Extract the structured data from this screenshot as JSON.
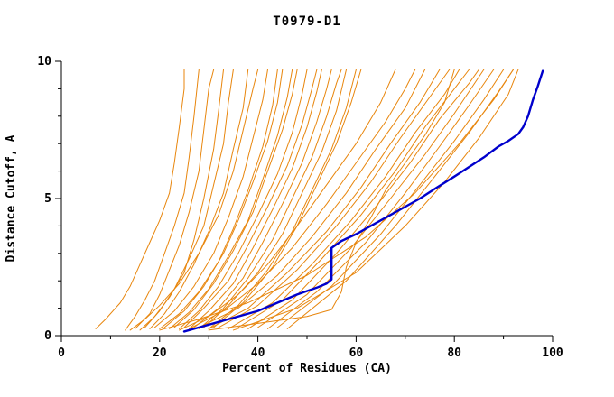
{
  "chart_data": {
    "type": "line",
    "title": "T0979-D1",
    "xlabel": "Percent of Residues (CA)",
    "ylabel": "Distance Cutoff, A",
    "xlim": [
      0,
      100
    ],
    "ylim": [
      0,
      10
    ],
    "x_ticks": [
      0,
      20,
      40,
      60,
      80,
      100
    ],
    "y_ticks": [
      0,
      5,
      10
    ],
    "x_minor_tick_step": 10,
    "y_minor_tick_step": 1,
    "grid": false,
    "legend": "none",
    "colors": {
      "orange": "#E8860D",
      "blue": "#0000CC",
      "axis": "#000000"
    },
    "blue_series": [
      [
        25,
        0.15
      ],
      [
        28,
        0.3
      ],
      [
        32,
        0.5
      ],
      [
        36,
        0.7
      ],
      [
        40,
        0.9
      ],
      [
        44,
        1.2
      ],
      [
        48,
        1.5
      ],
      [
        52,
        1.75
      ],
      [
        54,
        1.9
      ],
      [
        55,
        2.05
      ],
      [
        55,
        3.2
      ],
      [
        57,
        3.45
      ],
      [
        60,
        3.7
      ],
      [
        64,
        4.1
      ],
      [
        68,
        4.5
      ],
      [
        70,
        4.7
      ],
      [
        73,
        5.0
      ],
      [
        76,
        5.35
      ],
      [
        80,
        5.8
      ],
      [
        83,
        6.15
      ],
      [
        86,
        6.5
      ],
      [
        89,
        6.9
      ],
      [
        91,
        7.1
      ],
      [
        93,
        7.35
      ],
      [
        94,
        7.6
      ],
      [
        95,
        8.0
      ],
      [
        96,
        8.6
      ],
      [
        97,
        9.1
      ],
      [
        98,
        9.65
      ]
    ],
    "orange_series": [
      [
        [
          7,
          0.25
        ],
        [
          9,
          0.6
        ],
        [
          12,
          1.2
        ],
        [
          14,
          1.8
        ],
        [
          16,
          2.6
        ],
        [
          18,
          3.4
        ],
        [
          20,
          4.2
        ],
        [
          22,
          5.2
        ],
        [
          23,
          6.3
        ],
        [
          24,
          7.6
        ],
        [
          25,
          9.0
        ],
        [
          25,
          9.7
        ]
      ],
      [
        [
          13,
          0.2
        ],
        [
          15,
          0.7
        ],
        [
          17,
          1.3
        ],
        [
          19,
          2.0
        ],
        [
          21,
          3.0
        ],
        [
          23,
          4.0
        ],
        [
          25,
          5.2
        ],
        [
          26,
          6.5
        ],
        [
          27,
          8.0
        ],
        [
          28,
          9.7
        ]
      ],
      [
        [
          15,
          0.25
        ],
        [
          18,
          0.8
        ],
        [
          20,
          1.5
        ],
        [
          22,
          2.4
        ],
        [
          24,
          3.3
        ],
        [
          26,
          4.5
        ],
        [
          28,
          6.0
        ],
        [
          29,
          7.5
        ],
        [
          30,
          9.0
        ],
        [
          31,
          9.7
        ]
      ],
      [
        [
          16,
          0.2
        ],
        [
          19,
          0.7
        ],
        [
          22,
          1.4
        ],
        [
          25,
          2.3
        ],
        [
          27,
          3.5
        ],
        [
          29,
          5.0
        ],
        [
          31,
          6.8
        ],
        [
          32,
          8.2
        ],
        [
          33,
          9.7
        ]
      ],
      [
        [
          17,
          0.3
        ],
        [
          20,
          0.9
        ],
        [
          23,
          1.7
        ],
        [
          26,
          2.8
        ],
        [
          29,
          4.0
        ],
        [
          31,
          5.5
        ],
        [
          33,
          7.0
        ],
        [
          34,
          8.5
        ],
        [
          35,
          9.7
        ]
      ],
      [
        [
          18,
          0.25
        ],
        [
          21,
          0.8
        ],
        [
          24,
          1.6
        ],
        [
          27,
          2.6
        ],
        [
          30,
          3.8
        ],
        [
          33,
          5.2
        ],
        [
          35,
          6.8
        ],
        [
          37,
          8.3
        ],
        [
          38,
          9.7
        ]
      ],
      [
        [
          14,
          0.2
        ],
        [
          17,
          0.6
        ],
        [
          20,
          1.1
        ],
        [
          24,
          1.9
        ],
        [
          28,
          3.0
        ],
        [
          32,
          4.4
        ],
        [
          35,
          6.0
        ],
        [
          37,
          7.5
        ],
        [
          39,
          9.0
        ],
        [
          40,
          9.7
        ]
      ],
      [
        [
          19,
          0.3
        ],
        [
          23,
          0.9
        ],
        [
          27,
          1.8
        ],
        [
          31,
          3.0
        ],
        [
          34,
          4.3
        ],
        [
          37,
          5.8
        ],
        [
          39,
          7.2
        ],
        [
          41,
          8.6
        ],
        [
          42,
          9.7
        ]
      ],
      [
        [
          20,
          0.25
        ],
        [
          24,
          0.8
        ],
        [
          28,
          1.6
        ],
        [
          32,
          2.7
        ],
        [
          35,
          3.9
        ],
        [
          38,
          5.3
        ],
        [
          41,
          6.9
        ],
        [
          43,
          8.4
        ],
        [
          44,
          9.7
        ]
      ],
      [
        [
          21,
          0.3
        ],
        [
          25,
          0.9
        ],
        [
          29,
          1.8
        ],
        [
          33,
          3.0
        ],
        [
          36,
          4.2
        ],
        [
          39,
          5.6
        ],
        [
          42,
          7.1
        ],
        [
          44,
          8.5
        ],
        [
          45,
          9.7
        ]
      ],
      [
        [
          22,
          0.25
        ],
        [
          26,
          0.85
        ],
        [
          30,
          1.7
        ],
        [
          34,
          2.9
        ],
        [
          38,
          4.2
        ],
        [
          41,
          5.7
        ],
        [
          44,
          7.3
        ],
        [
          46,
          8.7
        ],
        [
          47,
          9.7
        ]
      ],
      [
        [
          23,
          0.3
        ],
        [
          27,
          0.95
        ],
        [
          31,
          1.9
        ],
        [
          35,
          3.1
        ],
        [
          39,
          4.5
        ],
        [
          42,
          6.0
        ],
        [
          45,
          7.5
        ],
        [
          47,
          8.8
        ],
        [
          48,
          9.7
        ]
      ],
      [
        [
          24,
          0.25
        ],
        [
          28,
          0.9
        ],
        [
          32,
          1.8
        ],
        [
          36,
          3.0
        ],
        [
          40,
          4.4
        ],
        [
          44,
          5.9
        ],
        [
          47,
          7.4
        ],
        [
          49,
          8.8
        ],
        [
          50,
          9.7
        ]
      ],
      [
        [
          25,
          0.3
        ],
        [
          29,
          1.0
        ],
        [
          34,
          2.0
        ],
        [
          38,
          3.3
        ],
        [
          42,
          4.7
        ],
        [
          46,
          6.2
        ],
        [
          49,
          7.7
        ],
        [
          51,
          9.0
        ],
        [
          52,
          9.7
        ]
      ],
      [
        [
          26,
          0.25
        ],
        [
          30,
          0.9
        ],
        [
          35,
          1.9
        ],
        [
          39,
          3.2
        ],
        [
          43,
          4.6
        ],
        [
          47,
          6.1
        ],
        [
          50,
          7.6
        ],
        [
          52,
          8.9
        ],
        [
          53,
          9.7
        ]
      ],
      [
        [
          27,
          0.3
        ],
        [
          32,
          1.0
        ],
        [
          37,
          2.1
        ],
        [
          41,
          3.4
        ],
        [
          45,
          4.8
        ],
        [
          49,
          6.3
        ],
        [
          52,
          7.8
        ],
        [
          54,
          9.0
        ],
        [
          55,
          9.7
        ]
      ],
      [
        [
          28,
          0.25
        ],
        [
          33,
          1.0
        ],
        [
          38,
          2.1
        ],
        [
          43,
          3.5
        ],
        [
          47,
          5.0
        ],
        [
          51,
          6.5
        ],
        [
          54,
          8.0
        ],
        [
          56,
          9.2
        ],
        [
          57,
          9.7
        ]
      ],
      [
        [
          29,
          0.3
        ],
        [
          34,
          1.1
        ],
        [
          40,
          2.3
        ],
        [
          45,
          3.7
        ],
        [
          49,
          5.2
        ],
        [
          53,
          6.7
        ],
        [
          56,
          8.2
        ],
        [
          58,
          9.7
        ]
      ],
      [
        [
          30,
          0.25
        ],
        [
          36,
          1.1
        ],
        [
          42,
          2.4
        ],
        [
          47,
          3.8
        ],
        [
          51,
          5.3
        ],
        [
          55,
          6.8
        ],
        [
          58,
          8.3
        ],
        [
          60,
          9.7
        ]
      ],
      [
        [
          31,
          0.3
        ],
        [
          37,
          1.2
        ],
        [
          43,
          2.5
        ],
        [
          48,
          4.0
        ],
        [
          52,
          5.5
        ],
        [
          56,
          7.0
        ],
        [
          59,
          8.5
        ],
        [
          61,
          9.7
        ]
      ],
      [
        [
          24,
          0.2
        ],
        [
          30,
          0.7
        ],
        [
          36,
          1.5
        ],
        [
          42,
          2.6
        ],
        [
          48,
          4.0
        ],
        [
          54,
          5.5
        ],
        [
          60,
          7.0
        ],
        [
          65,
          8.5
        ],
        [
          68,
          9.7
        ]
      ],
      [
        [
          26,
          0.25
        ],
        [
          33,
          0.9
        ],
        [
          40,
          1.9
        ],
        [
          47,
          3.2
        ],
        [
          54,
          4.8
        ],
        [
          60,
          6.3
        ],
        [
          66,
          7.8
        ],
        [
          70,
          9.0
        ],
        [
          72,
          9.7
        ]
      ],
      [
        [
          28,
          0.3
        ],
        [
          36,
          1.0
        ],
        [
          44,
          2.2
        ],
        [
          51,
          3.6
        ],
        [
          58,
          5.2
        ],
        [
          64,
          6.8
        ],
        [
          70,
          8.3
        ],
        [
          74,
          9.7
        ]
      ],
      [
        [
          30,
          0.25
        ],
        [
          38,
          1.0
        ],
        [
          46,
          2.3
        ],
        [
          54,
          3.8
        ],
        [
          61,
          5.4
        ],
        [
          67,
          7.0
        ],
        [
          73,
          8.5
        ],
        [
          77,
          9.7
        ]
      ],
      [
        [
          32,
          0.3
        ],
        [
          40,
          1.1
        ],
        [
          48,
          2.4
        ],
        [
          56,
          4.0
        ],
        [
          63,
          5.6
        ],
        [
          69,
          7.2
        ],
        [
          75,
          8.7
        ],
        [
          79,
          9.7
        ]
      ],
      [
        [
          34,
          0.25
        ],
        [
          43,
          1.2
        ],
        [
          51,
          2.6
        ],
        [
          59,
          4.2
        ],
        [
          66,
          5.8
        ],
        [
          72,
          7.4
        ],
        [
          78,
          8.8
        ],
        [
          81,
          9.7
        ]
      ],
      [
        [
          36,
          0.3
        ],
        [
          45,
          1.3
        ],
        [
          53,
          2.8
        ],
        [
          61,
          4.4
        ],
        [
          68,
          6.0
        ],
        [
          74,
          7.6
        ],
        [
          80,
          9.0
        ],
        [
          83,
          9.7
        ]
      ],
      [
        [
          38,
          0.25
        ],
        [
          47,
          1.3
        ],
        [
          56,
          3.0
        ],
        [
          64,
          4.7
        ],
        [
          71,
          6.3
        ],
        [
          77,
          7.9
        ],
        [
          83,
          9.2
        ],
        [
          85,
          9.7
        ]
      ],
      [
        [
          40,
          0.3
        ],
        [
          50,
          1.5
        ],
        [
          59,
          3.2
        ],
        [
          67,
          5.0
        ],
        [
          74,
          6.6
        ],
        [
          80,
          8.1
        ],
        [
          86,
          9.7
        ]
      ],
      [
        [
          42,
          0.25
        ],
        [
          52,
          1.6
        ],
        [
          62,
          3.4
        ],
        [
          70,
          5.2
        ],
        [
          77,
          6.9
        ],
        [
          83,
          8.4
        ],
        [
          88,
          9.7
        ]
      ],
      [
        [
          44,
          0.3
        ],
        [
          55,
          1.8
        ],
        [
          65,
          3.7
        ],
        [
          73,
          5.5
        ],
        [
          80,
          7.1
        ],
        [
          86,
          8.6
        ],
        [
          90,
          9.7
        ]
      ],
      [
        [
          46,
          0.25
        ],
        [
          58,
          2.0
        ],
        [
          68,
          4.0
        ],
        [
          76,
          5.8
        ],
        [
          83,
          7.4
        ],
        [
          89,
          8.9
        ],
        [
          92,
          9.7
        ]
      ],
      [
        [
          35,
          0.2
        ],
        [
          48,
          1.0
        ],
        [
          60,
          2.3
        ],
        [
          70,
          4.0
        ],
        [
          78,
          5.6
        ],
        [
          85,
          7.2
        ],
        [
          91,
          8.8
        ],
        [
          93,
          9.7
        ]
      ],
      [
        [
          20,
          0.2
        ],
        [
          28,
          0.6
        ],
        [
          38,
          1.2
        ],
        [
          50,
          2.2
        ],
        [
          62,
          3.6
        ],
        [
          72,
          5.2
        ],
        [
          81,
          7.0
        ],
        [
          88,
          8.6
        ],
        [
          92,
          9.7
        ]
      ],
      [
        [
          30,
          0.2
        ],
        [
          40,
          0.45
        ],
        [
          50,
          0.7
        ],
        [
          55,
          0.95
        ],
        [
          57,
          1.6
        ],
        [
          58,
          2.5
        ],
        [
          60,
          3.4
        ],
        [
          63,
          4.3
        ],
        [
          66,
          5.3
        ],
        [
          70,
          6.3
        ],
        [
          74,
          7.3
        ],
        [
          78,
          8.5
        ],
        [
          80,
          9.7
        ]
      ]
    ]
  }
}
